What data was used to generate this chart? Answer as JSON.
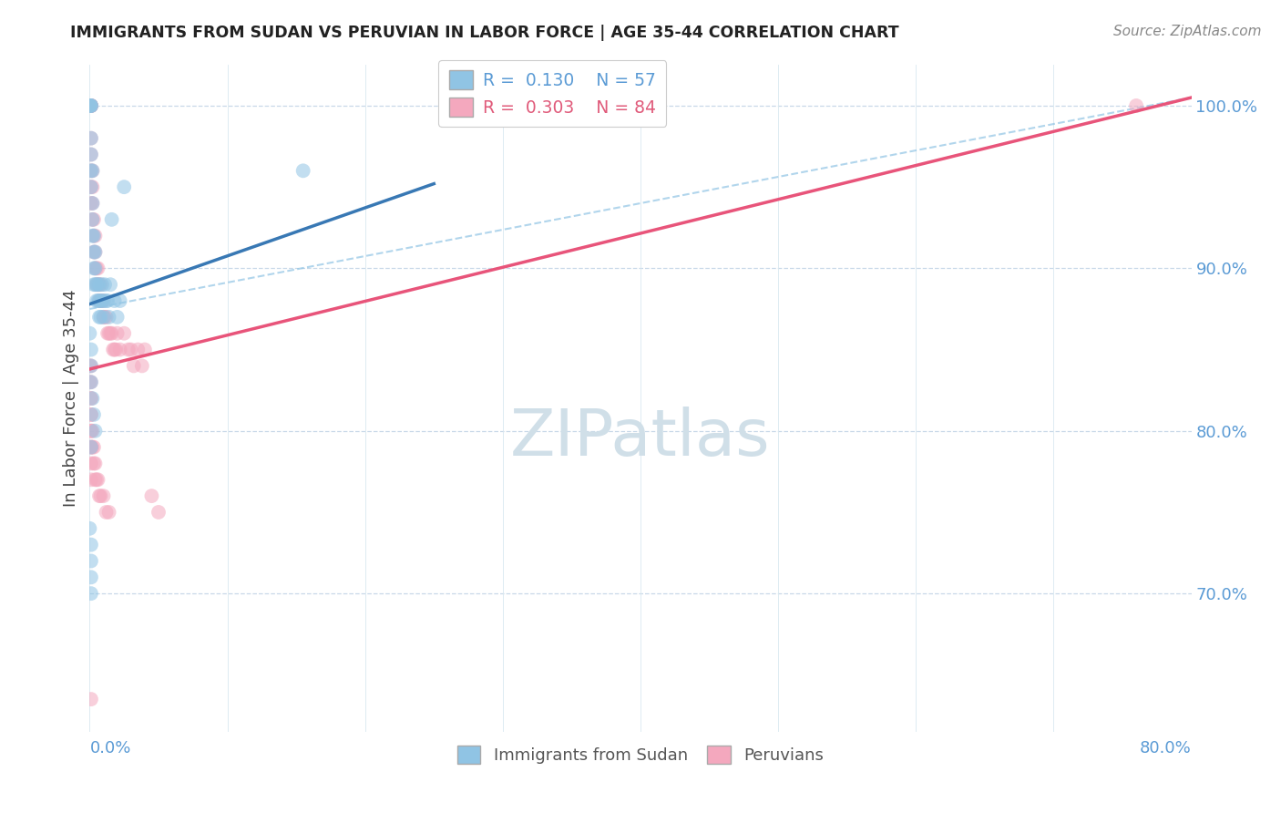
{
  "title": "IMMIGRANTS FROM SUDAN VS PERUVIAN IN LABOR FORCE | AGE 35-44 CORRELATION CHART",
  "source": "Source: ZipAtlas.com",
  "ylabel": "In Labor Force | Age 35-44",
  "legend_label_sudan": "Immigrants from Sudan",
  "legend_label_peru": "Peruvians",
  "blue_color": "#90c4e4",
  "pink_color": "#f4a8be",
  "blue_line_color": "#3878b4",
  "pink_line_color": "#e8547a",
  "blue_r": 0.13,
  "blue_n": 57,
  "pink_r": 0.303,
  "pink_n": 84,
  "xmin": 0.0,
  "xmax": 0.8,
  "ymin": 0.615,
  "ymax": 1.025,
  "sudan_x": [
    0.0,
    0.0,
    0.001,
    0.001,
    0.001,
    0.001,
    0.001,
    0.001,
    0.001,
    0.002,
    0.002,
    0.002,
    0.002,
    0.003,
    0.003,
    0.003,
    0.003,
    0.004,
    0.004,
    0.004,
    0.005,
    0.005,
    0.006,
    0.006,
    0.007,
    0.007,
    0.007,
    0.008,
    0.008,
    0.009,
    0.009,
    0.01,
    0.01,
    0.011,
    0.012,
    0.013,
    0.014,
    0.015,
    0.016,
    0.018,
    0.02,
    0.022,
    0.025,
    0.0,
    0.001,
    0.001,
    0.001,
    0.002,
    0.003,
    0.004,
    0.0,
    0.001,
    0.001,
    0.001,
    0.001,
    0.155,
    0.001
  ],
  "sudan_y": [
    1.0,
    1.0,
    1.0,
    1.0,
    1.0,
    0.98,
    0.97,
    0.96,
    0.95,
    0.96,
    0.94,
    0.93,
    0.92,
    0.91,
    0.92,
    0.9,
    0.89,
    0.91,
    0.9,
    0.89,
    0.89,
    0.88,
    0.89,
    0.88,
    0.89,
    0.88,
    0.87,
    0.88,
    0.87,
    0.89,
    0.88,
    0.88,
    0.87,
    0.89,
    0.88,
    0.88,
    0.87,
    0.89,
    0.93,
    0.88,
    0.87,
    0.88,
    0.95,
    0.86,
    0.85,
    0.84,
    0.83,
    0.82,
    0.81,
    0.8,
    0.74,
    0.73,
    0.72,
    0.71,
    0.7,
    0.96,
    0.79
  ],
  "peru_x": [
    0.0,
    0.0,
    0.0,
    0.0,
    0.001,
    0.001,
    0.001,
    0.001,
    0.001,
    0.001,
    0.001,
    0.001,
    0.001,
    0.001,
    0.002,
    0.002,
    0.002,
    0.002,
    0.003,
    0.003,
    0.003,
    0.004,
    0.004,
    0.004,
    0.005,
    0.005,
    0.006,
    0.006,
    0.007,
    0.007,
    0.008,
    0.008,
    0.009,
    0.01,
    0.01,
    0.011,
    0.012,
    0.013,
    0.014,
    0.015,
    0.016,
    0.017,
    0.018,
    0.019,
    0.02,
    0.022,
    0.025,
    0.028,
    0.03,
    0.032,
    0.035,
    0.038,
    0.04,
    0.0,
    0.001,
    0.001,
    0.001,
    0.001,
    0.001,
    0.002,
    0.002,
    0.003,
    0.003,
    0.004,
    0.004,
    0.005,
    0.006,
    0.007,
    0.008,
    0.01,
    0.012,
    0.014,
    0.0,
    0.001,
    0.001,
    0.001,
    0.001,
    0.001,
    0.001,
    0.001,
    0.76,
    0.045,
    0.05,
    0.001
  ],
  "peru_y": [
    1.0,
    1.0,
    1.0,
    1.0,
    1.0,
    1.0,
    1.0,
    1.0,
    1.0,
    0.98,
    0.97,
    0.96,
    0.95,
    0.94,
    0.96,
    0.95,
    0.94,
    0.93,
    0.93,
    0.92,
    0.91,
    0.92,
    0.91,
    0.9,
    0.9,
    0.89,
    0.9,
    0.89,
    0.89,
    0.88,
    0.89,
    0.88,
    0.88,
    0.88,
    0.87,
    0.87,
    0.87,
    0.86,
    0.86,
    0.86,
    0.86,
    0.85,
    0.85,
    0.85,
    0.86,
    0.85,
    0.86,
    0.85,
    0.85,
    0.84,
    0.85,
    0.84,
    0.85,
    0.84,
    0.84,
    0.83,
    0.82,
    0.81,
    0.8,
    0.8,
    0.79,
    0.79,
    0.78,
    0.78,
    0.77,
    0.77,
    0.77,
    0.76,
    0.76,
    0.76,
    0.75,
    0.75,
    0.83,
    0.82,
    0.81,
    0.8,
    0.79,
    0.79,
    0.78,
    0.77,
    1.0,
    0.76,
    0.75,
    0.635
  ],
  "blue_trendline_x": [
    0.0,
    0.25
  ],
  "blue_trendline_y": [
    0.878,
    0.952
  ],
  "pink_trendline_x": [
    0.0,
    0.8
  ],
  "pink_trendline_y": [
    0.838,
    1.005
  ],
  "dash_line_x": [
    0.0,
    0.8
  ],
  "dash_line_y": [
    0.875,
    1.005
  ],
  "watermark": "ZIPatlas",
  "watermark_color": "#d0dfe8"
}
